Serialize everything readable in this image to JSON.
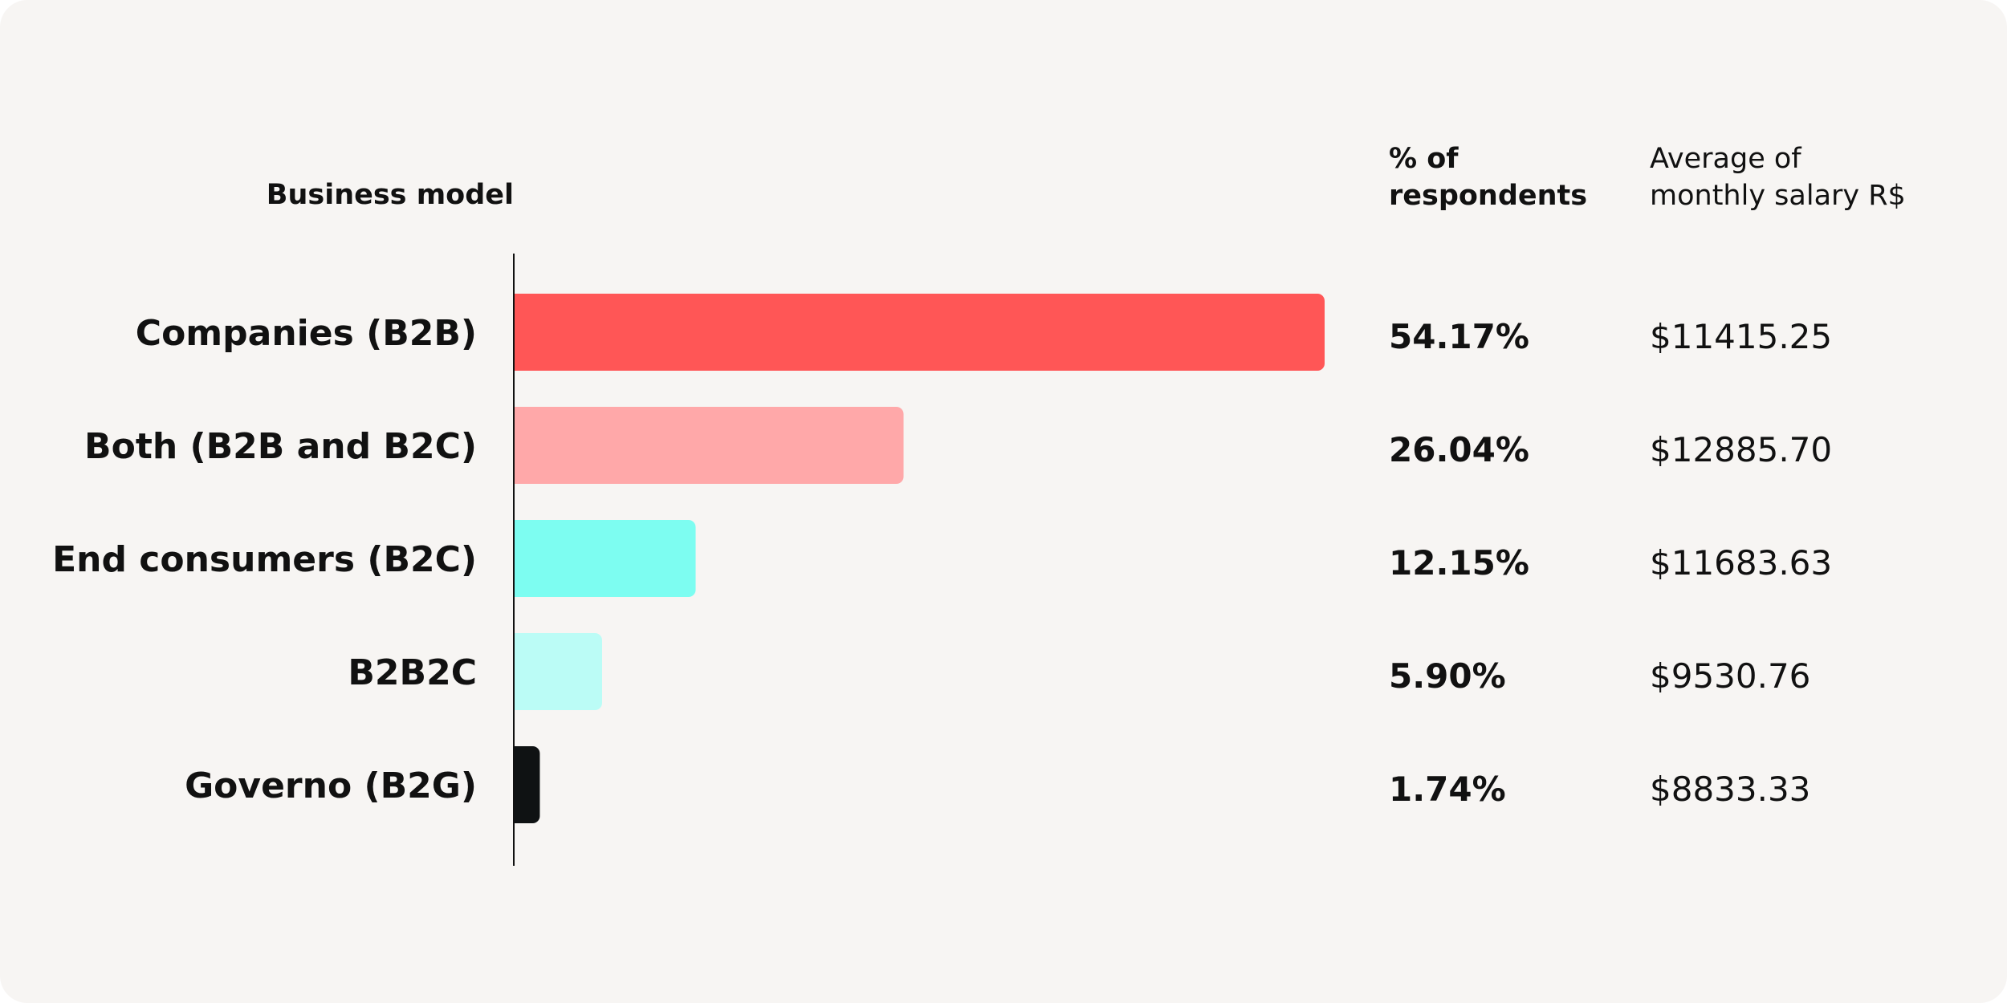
{
  "chart_data": {
    "type": "bar",
    "orientation": "horizontal",
    "category_header": "Business model",
    "pct_header": [
      "% of",
      "respondents"
    ],
    "salary_header": [
      "Average of",
      "monthly salary R$"
    ],
    "categories": [
      "Companies (B2B)",
      "Both (B2B and B2C)",
      "End consumers (B2C)",
      "B2B2C",
      "Governo (B2G)"
    ],
    "values": [
      54.17,
      26.04,
      12.15,
      5.9,
      1.74
    ],
    "value_labels": [
      "54.17%",
      "26.04%",
      "12.15%",
      "5.90%",
      "1.74%"
    ],
    "salary_labels": [
      "$11415.25",
      "$12885.70",
      "$11683.63",
      "$9530.76",
      "$8833.33"
    ],
    "salary_values": [
      11415.25,
      12885.7,
      11683.63,
      9530.76,
      8833.33
    ],
    "colors": [
      "#ff5656",
      "#ffa8a9",
      "#7dfdf1",
      "#bbfcf6",
      "#0f1213"
    ],
    "xlim": [
      0,
      54.17
    ],
    "grid": false,
    "legend": "none"
  }
}
